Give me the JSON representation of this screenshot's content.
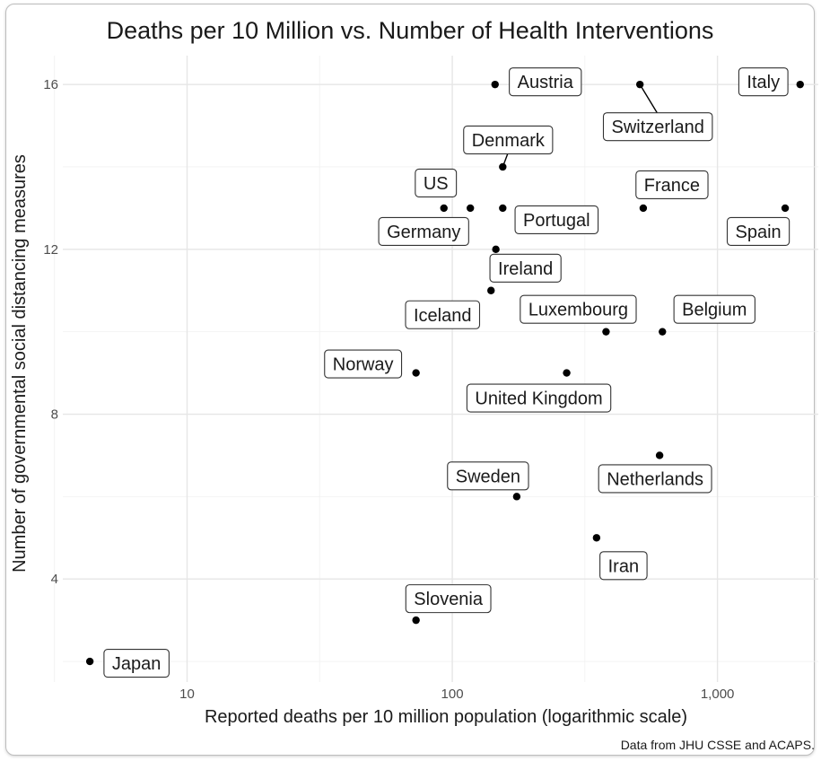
{
  "chart_data": {
    "type": "scatter",
    "title": "Deaths per 10 Million vs. Number of Health Interventions",
    "xlabel": "Reported deaths per 10 million population (logarithmic scale)",
    "ylabel": "Number of governmental social distancing measures",
    "caption": "Data from JHU CSSE and ACAPS.",
    "x_scale": "log10",
    "xlim": [
      3.4,
      2400
    ],
    "ylim": [
      1.5,
      16.7
    ],
    "x_ticks": [
      {
        "value": 10,
        "label": "10"
      },
      {
        "value": 100,
        "label": "100"
      },
      {
        "value": 1000,
        "label": "1,000"
      }
    ],
    "y_ticks": [
      {
        "value": 4,
        "label": "4"
      },
      {
        "value": 8,
        "label": "8"
      },
      {
        "value": 12,
        "label": "12"
      },
      {
        "value": 16,
        "label": "16"
      }
    ],
    "grid": true,
    "legend": "none",
    "points": [
      {
        "label": "Austria",
        "x": 145,
        "y": 16
      },
      {
        "label": "Switzerland",
        "x": 510,
        "y": 16
      },
      {
        "label": "Italy",
        "x": 2050,
        "y": 16
      },
      {
        "label": "Denmark",
        "x": 155,
        "y": 14
      },
      {
        "label": "US",
        "x": 93,
        "y": 13
      },
      {
        "label": "Germany",
        "x": 117,
        "y": 13
      },
      {
        "label": "Portugal",
        "x": 155,
        "y": 13
      },
      {
        "label": "France",
        "x": 525,
        "y": 13
      },
      {
        "label": "Spain",
        "x": 1800,
        "y": 13
      },
      {
        "label": "Ireland",
        "x": 146,
        "y": 12
      },
      {
        "label": "Iceland",
        "x": 140,
        "y": 11
      },
      {
        "label": "Luxembourg",
        "x": 380,
        "y": 10
      },
      {
        "label": "Belgium",
        "x": 620,
        "y": 10
      },
      {
        "label": "Norway",
        "x": 73,
        "y": 9
      },
      {
        "label": "United Kingdom",
        "x": 270,
        "y": 9
      },
      {
        "label": "Netherlands",
        "x": 605,
        "y": 7
      },
      {
        "label": "Sweden",
        "x": 175,
        "y": 6
      },
      {
        "label": "Iran",
        "x": 350,
        "y": 5
      },
      {
        "label": "Slovenia",
        "x": 73,
        "y": 3
      },
      {
        "label": "Japan",
        "x": 4.3,
        "y": 2
      }
    ]
  }
}
